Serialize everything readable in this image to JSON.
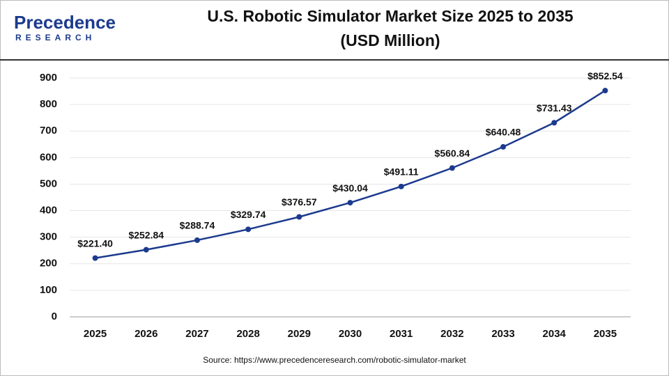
{
  "brand": {
    "name": "Precedence",
    "tagline": "RESEARCH"
  },
  "chart_data": {
    "type": "line",
    "title": "U.S. Robotic Simulator Market Size 2025 to 2035",
    "subtitle": "(USD Million)",
    "source": "Source: https://www.precedenceresearch.com/robotic-simulator-market",
    "categories": [
      "2025",
      "2026",
      "2027",
      "2028",
      "2029",
      "2030",
      "2031",
      "2032",
      "2033",
      "2034",
      "2035"
    ],
    "values": [
      221.4,
      252.84,
      288.74,
      329.74,
      376.57,
      430.04,
      491.11,
      560.84,
      640.48,
      731.43,
      852.54
    ],
    "value_labels": [
      "$221.40",
      "$252.84",
      "$288.74",
      "$329.74",
      "$376.57",
      "$430.04",
      "$491.11",
      "$560.84",
      "$640.48",
      "$731.43",
      "$852.54"
    ],
    "color": "#1c3a8e",
    "ylim": [
      0,
      900
    ],
    "yticks": [
      0,
      100,
      200,
      300,
      400,
      500,
      600,
      700,
      800,
      900
    ],
    "grid": true
  }
}
